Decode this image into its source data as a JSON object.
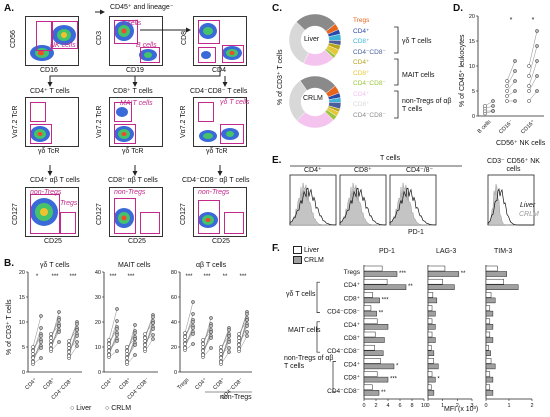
{
  "panels": {
    "A": "A.",
    "B": "B.",
    "C": "C.",
    "D": "D.",
    "E": "E.",
    "F": "F."
  },
  "panelA": {
    "top_header": "CD45⁺ and lineage⁻",
    "row1": {
      "x_labels": [
        "CD16",
        "CD19",
        "CD4"
      ],
      "y_labels": [
        "CD56",
        "CD3",
        "CD8"
      ],
      "gates": [
        "NK cells",
        "T cells",
        "B cells"
      ]
    },
    "row2": {
      "titles": [
        "CD4⁺ T cells",
        "CD8⁺ T cells",
        "CD4⁻CD8⁻ T cells"
      ],
      "x_label": "γδ TcR",
      "y_label": "Vα7.2 TcR",
      "gates": [
        "MAIT cells",
        "γδ T cells"
      ]
    },
    "row3": {
      "titles": [
        "CD4⁺ αβ T cells",
        "CD8⁺ αβ T cells",
        "CD4⁻CD8⁻ αβ T cells"
      ],
      "x_label": "CD25",
      "y_label": "CD127",
      "gates": [
        "non-Tregs",
        "Tregs",
        "non-Tregs",
        "non-Tregs"
      ]
    }
  },
  "panelB": {
    "y_label": "% of CD3⁺ T cells",
    "groups": [
      {
        "title": "γδ T cells",
        "cats": [
          "CD4⁺",
          "CD8⁺",
          "CD4⁻CD8⁻"
        ],
        "stars": [
          "*",
          "***",
          "***"
        ]
      },
      {
        "title": "MAIT cells",
        "cats": [
          "CD4⁺",
          "CD8⁺",
          "CD4⁻CD8⁻"
        ],
        "stars": [
          "***",
          "***"
        ]
      },
      {
        "title": "αβ T cells",
        "cats": [
          "Tregs",
          "CD4⁺",
          "CD8⁺",
          "CD4⁻CD8⁻"
        ],
        "stars": [
          "***",
          "***",
          "**",
          "***"
        ],
        "sub": "non-Tregs"
      }
    ],
    "y_ticks_1": [
      "0",
      "5",
      "10",
      "15",
      "20"
    ],
    "y_ticks_2": [
      "0",
      "10",
      "20",
      "30",
      "40"
    ],
    "y_ticks_3": [
      "0",
      "20",
      "40",
      "60",
      "80"
    ],
    "legend": [
      "Liver",
      "CRLM"
    ]
  },
  "panelC": {
    "y_label": "% of CD3⁺ T cells",
    "donuts": [
      "Liver",
      "CRLM"
    ],
    "legend": [
      {
        "label": "Tregs",
        "color": "#e8651e"
      },
      {
        "label": "CD4⁺",
        "color": "#2b4aa8"
      },
      {
        "label": "CD8⁺",
        "color": "#3fb4d8"
      },
      {
        "label": "CD4⁻CD8⁻",
        "color": "#4a5d9c"
      },
      {
        "label": "CD4⁺",
        "color": "#b7a41e"
      },
      {
        "label": "CD8⁺",
        "color": "#e5c83a"
      },
      {
        "label": "CD4⁻CD8⁻",
        "color": "#9bc53d"
      },
      {
        "label": "CD4⁺",
        "color": "#f4c4ef"
      },
      {
        "label": "CD8⁺",
        "color": "#d8d8d8"
      },
      {
        "label": "CD4⁻CD8⁻",
        "color": "#8a8a8a"
      }
    ],
    "brackets": [
      "γδ T cells",
      "MAIT cells",
      "non-Tregs of αβ T cells"
    ]
  },
  "panelD": {
    "y_label": "% of CD45⁺ leukocytes",
    "y_ticks": [
      "0",
      "5",
      "10",
      "15",
      "20"
    ],
    "cats": [
      "B cells",
      "CD16⁻",
      "CD16⁺"
    ],
    "x_sub": "CD56⁺ NK cells",
    "stars": [
      "*",
      "*"
    ]
  },
  "panelE": {
    "header": "T cells",
    "titles": [
      "CD4⁺",
      "CD8⁺",
      "CD4⁻/8⁻",
      "CD3⁻ CD56⁺ NK cells"
    ],
    "x_label": "PD-1",
    "legend": [
      "Liver",
      "CRLM"
    ]
  },
  "panelF": {
    "legend": [
      "Liver",
      "CRLM"
    ],
    "columns": [
      "PD-1",
      "LAG-3",
      "TIM-3"
    ],
    "rows": [
      "Tregs",
      "CD4⁺",
      "CD8⁺",
      "CD4⁻CD8⁻",
      "CD4⁺",
      "CD8⁺",
      "CD4⁻CD8⁻",
      "CD4⁺",
      "CD8⁺",
      "CD4⁻CD8⁻"
    ],
    "groups": [
      "γδ T cells",
      "MAIT cells",
      "non-Tregs of αβ T cells"
    ],
    "x_ticks_pd1": [
      "0",
      "2",
      "4",
      "6",
      "8",
      "10"
    ],
    "x_ticks_lag3": [
      "0",
      "1",
      "2",
      "3"
    ],
    "x_ticks_tim3": [
      "0",
      "1",
      "2"
    ],
    "x_label": "MFI (x 10³)",
    "stars_pd1": [
      "***",
      "**",
      "***",
      "**",
      "",
      "",
      "",
      "*",
      "***",
      "**"
    ],
    "stars_lag3": [
      "**",
      "",
      "",
      "",
      "",
      "",
      "",
      "",
      "*",
      ""
    ],
    "values_pd1": [
      5.5,
      7.0,
      2.6,
      2.1,
      4.0,
      3.4,
      3.2,
      5.0,
      4.0,
      2.5
    ],
    "values_lag3": [
      2.1,
      1.8,
      0.6,
      0.5,
      0.5,
      0.5,
      0.4,
      0.7,
      0.5,
      0.4
    ],
    "values_tim3": [
      0.9,
      1.4,
      0.4,
      0.3,
      0.3,
      0.3,
      0.2,
      0.4,
      0.3,
      0.3
    ]
  },
  "colors": {
    "magenta": "#c2298a",
    "liver": "#ffffff",
    "crlm": "#a0a0a0"
  }
}
